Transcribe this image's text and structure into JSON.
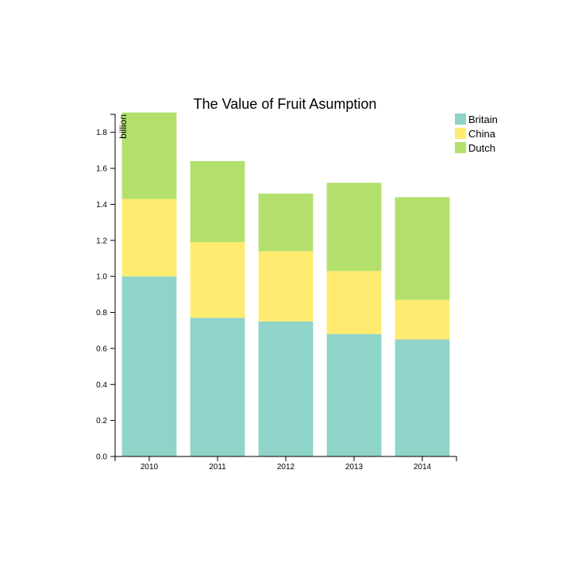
{
  "chart_data": {
    "type": "bar",
    "stacked": true,
    "title": "The Value of Fruit Asumption",
    "xlabel": "",
    "ylabel": "billion",
    "ylim": [
      0,
      1.9
    ],
    "yticks": [
      "0.0",
      "0.2",
      "0.4",
      "0.6",
      "0.8",
      "1.0",
      "1.2",
      "1.4",
      "1.6",
      "1.8"
    ],
    "categories": [
      "2010",
      "2011",
      "2012",
      "2013",
      "2014"
    ],
    "series": [
      {
        "name": "Britain",
        "color": "#8fd4c8",
        "values": [
          1.0,
          0.77,
          0.75,
          0.68,
          0.65
        ]
      },
      {
        "name": "China",
        "color": "#ffeb6f",
        "values": [
          0.43,
          0.42,
          0.39,
          0.35,
          0.22
        ]
      },
      {
        "name": "Dutch",
        "color": "#b3e06c",
        "values": [
          0.48,
          0.45,
          0.32,
          0.49,
          0.57
        ]
      }
    ],
    "legend_position": "top-right",
    "grid": false
  }
}
